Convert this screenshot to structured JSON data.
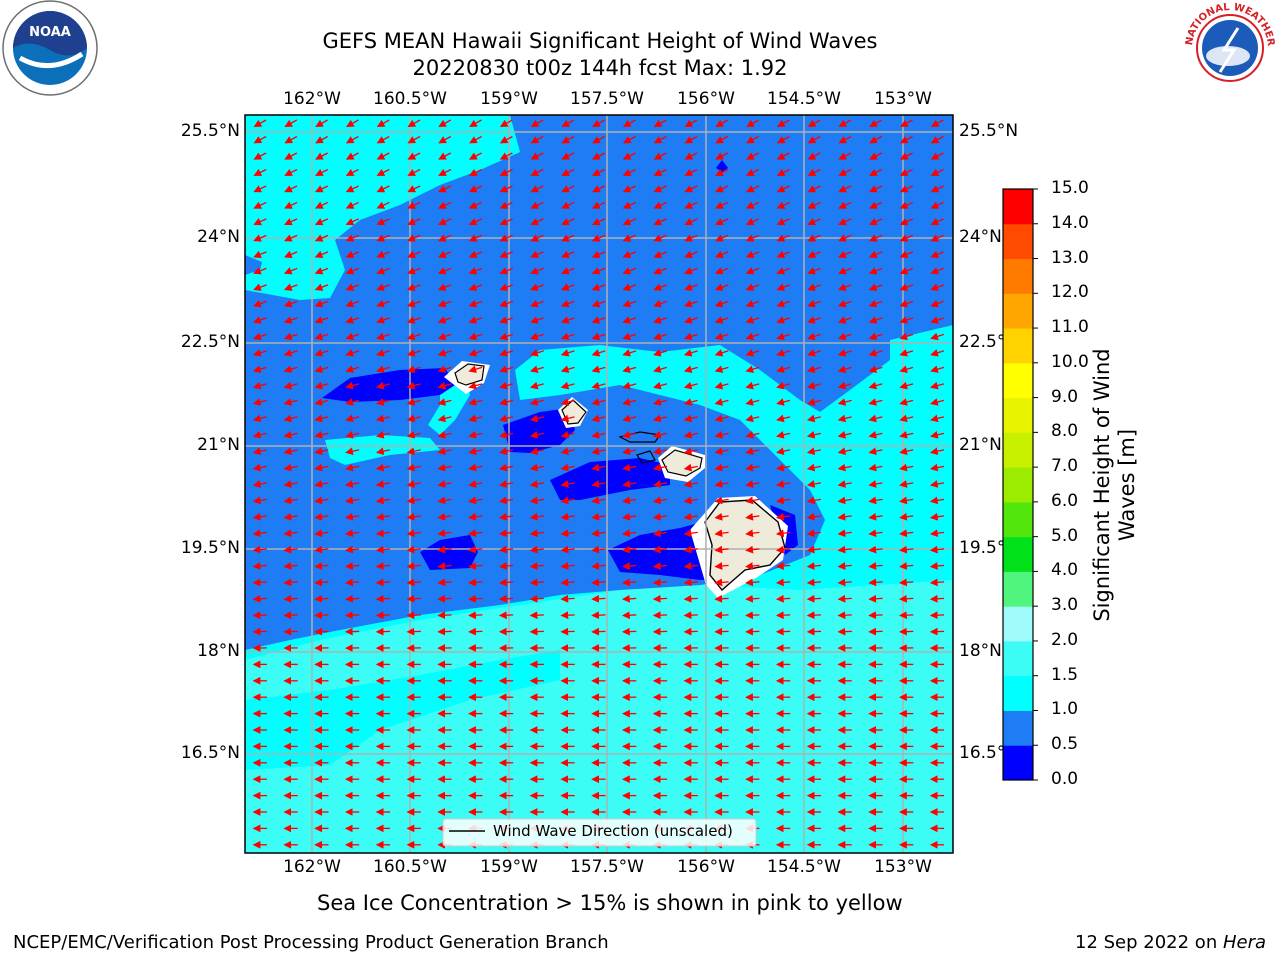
{
  "header": {
    "title_line1": "GEFS MEAN Hawaii Significant Height of Wind Waves",
    "title_line2": "20220830 t00z 144h fcst   Max: 1.92"
  },
  "logos": {
    "left": "NOAA",
    "right_text": "NATIONAL WEATHER SERVICE"
  },
  "map": {
    "lon_labels": [
      "162°W",
      "160.5°W",
      "159°W",
      "157.5°W",
      "156°W",
      "154.5°W",
      "153°W"
    ],
    "lat_labels": [
      "25.5°N",
      "24°N",
      "22.5°N",
      "21°N",
      "19.5°N",
      "18°N",
      "16.5°N"
    ],
    "legend_label": "Wind Wave Direction (unscaled)",
    "colors": {
      "0.0-0.5": "#0000ff",
      "0.5-1.0": "#1e7cf5",
      "1.0-1.5": "#00ffff",
      "1.5-2.0": "#3cfcf6",
      "land": "#eeebdb",
      "arrow": "#ff0000",
      "grid": "#b0b0b0"
    }
  },
  "colorbar": {
    "title": "Significant Height of Wind Waves [m]",
    "levels": [
      "0.0",
      "0.5",
      "1.0",
      "1.5",
      "2.0",
      "3.0",
      "4.0",
      "5.0",
      "6.0",
      "7.0",
      "8.0",
      "9.0",
      "10.0",
      "11.0",
      "12.0",
      "13.0",
      "14.0",
      "15.0"
    ],
    "colors": [
      "#0000ff",
      "#1e7cf5",
      "#00ffff",
      "#3cfcf6",
      "#a0fcfa",
      "#50f57e",
      "#00e11a",
      "#53e60c",
      "#9bec00",
      "#c8f100",
      "#e8f300",
      "#ffff00",
      "#ffd300",
      "#ffa700",
      "#ff7b00",
      "#ff4a00",
      "#ff0000"
    ]
  },
  "note": "Sea Ice Concentration > 15% is shown in pink to yellow",
  "footer": {
    "left": "NCEP/EMC/Verification Post Processing Product Generation Branch",
    "right_date": "12 Sep 2022 on ",
    "right_machine": "Hera"
  }
}
